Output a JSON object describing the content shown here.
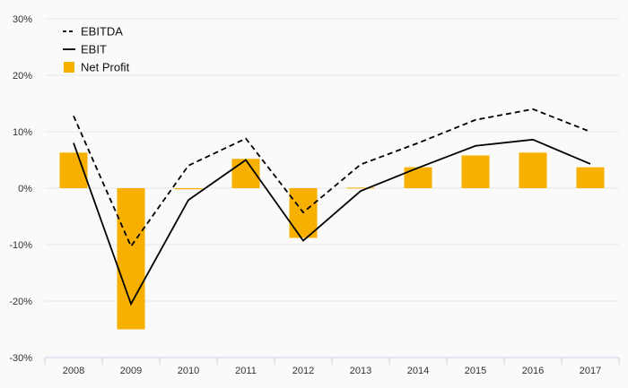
{
  "chart_data": {
    "type": "bar",
    "categories": [
      "2008",
      "2009",
      "2010",
      "2011",
      "2012",
      "2013",
      "2014",
      "2015",
      "2016",
      "2017"
    ],
    "series": [
      {
        "name": "EBITDA",
        "kind": "line",
        "style": "dashed",
        "color": "#000000",
        "values": [
          12.8,
          -10.3,
          4.0,
          8.8,
          -4.3,
          4.2,
          8.0,
          12.1,
          14.0,
          10.0
        ]
      },
      {
        "name": "EBIT",
        "kind": "line",
        "style": "solid",
        "color": "#000000",
        "values": [
          8.0,
          -20.5,
          -2.1,
          5.0,
          -9.3,
          -0.5,
          3.6,
          7.5,
          8.6,
          4.3
        ]
      },
      {
        "name": "Net Profit",
        "kind": "bar",
        "color": "#f7b000",
        "values": [
          6.3,
          -25.0,
          -0.2,
          5.2,
          -8.8,
          0.1,
          3.7,
          5.8,
          6.3,
          3.7
        ]
      }
    ],
    "yticks": [
      "30%",
      "20%",
      "10%",
      "0%",
      "-10%",
      "-20%",
      "-30%"
    ],
    "ylim": [
      -30,
      30
    ],
    "xlabel": "",
    "ylabel": "",
    "grid": true,
    "legend_position": "top-left"
  }
}
